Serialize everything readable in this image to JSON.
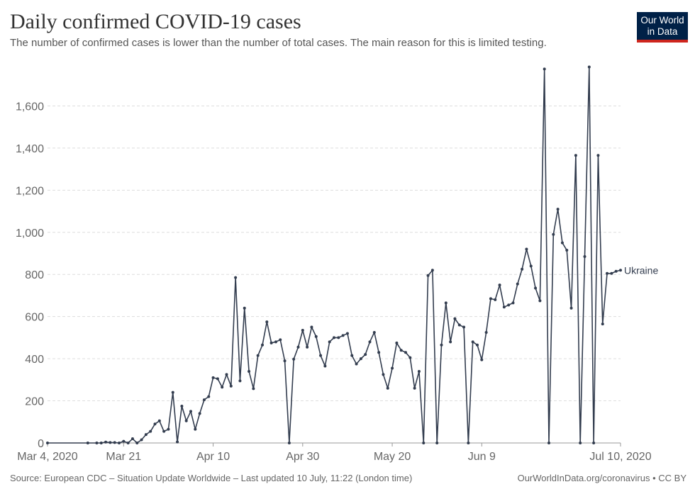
{
  "header": {
    "title": "Daily confirmed COVID-19 cases",
    "subtitle": "The number of confirmed cases is lower than the number of total cases. The main reason for this is limited testing."
  },
  "logo": {
    "line1": "Our World",
    "line2": "in Data",
    "bg_color": "#002147",
    "accent_color": "#ce261e"
  },
  "footer": {
    "source": "Source: European CDC – Situation Update Worldwide – Last updated 10 July, 11:22 (London time)",
    "credit": "OurWorldInData.org/coronavirus • CC BY"
  },
  "chart_data": {
    "type": "line",
    "x_start": "2020-03-04",
    "x_end": "2020-07-10",
    "x_tick_labels": [
      "Mar 4, 2020",
      "Mar 21",
      "Apr 10",
      "Apr 30",
      "May 20",
      "Jun 9",
      "Jul 10, 2020"
    ],
    "x_tick_dates": [
      "2020-03-04",
      "2020-03-21",
      "2020-04-10",
      "2020-04-30",
      "2020-05-20",
      "2020-06-09",
      "2020-07-10"
    ],
    "y_ticks": [
      0,
      200,
      400,
      600,
      800,
      1000,
      1200,
      1400,
      1600
    ],
    "y_tick_labels": [
      "0",
      "200",
      "400",
      "600",
      "800",
      "1,000",
      "1,200",
      "1,400",
      "1,600"
    ],
    "ylim": [
      0,
      1800
    ],
    "grid": "horizontal-dashed",
    "series": [
      {
        "name": "Ukraine",
        "color": "#333d4f",
        "points": [
          [
            "2020-03-04",
            0
          ],
          [
            "2020-03-13",
            0
          ],
          [
            "2020-03-15",
            0
          ],
          [
            "2020-03-16",
            0
          ],
          [
            "2020-03-17",
            4
          ],
          [
            "2020-03-18",
            2
          ],
          [
            "2020-03-19",
            2
          ],
          [
            "2020-03-20",
            0
          ],
          [
            "2020-03-21",
            8
          ],
          [
            "2020-03-22",
            0
          ],
          [
            "2020-03-23",
            20
          ],
          [
            "2020-03-24",
            0
          ],
          [
            "2020-03-25",
            15
          ],
          [
            "2020-03-26",
            40
          ],
          [
            "2020-03-27",
            55
          ],
          [
            "2020-03-28",
            90
          ],
          [
            "2020-03-29",
            105
          ],
          [
            "2020-03-30",
            55
          ],
          [
            "2020-03-31",
            65
          ],
          [
            "2020-04-01",
            240
          ],
          [
            "2020-04-02",
            5
          ],
          [
            "2020-04-03",
            175
          ],
          [
            "2020-04-04",
            105
          ],
          [
            "2020-04-05",
            150
          ],
          [
            "2020-04-06",
            65
          ],
          [
            "2020-04-07",
            140
          ],
          [
            "2020-04-08",
            205
          ],
          [
            "2020-04-09",
            220
          ],
          [
            "2020-04-10",
            310
          ],
          [
            "2020-04-11",
            305
          ],
          [
            "2020-04-12",
            265
          ],
          [
            "2020-04-13",
            325
          ],
          [
            "2020-04-14",
            270
          ],
          [
            "2020-04-15",
            785
          ],
          [
            "2020-04-16",
            295
          ],
          [
            "2020-04-17",
            640
          ],
          [
            "2020-04-18",
            340
          ],
          [
            "2020-04-19",
            258
          ],
          [
            "2020-04-20",
            415
          ],
          [
            "2020-04-21",
            465
          ],
          [
            "2020-04-22",
            575
          ],
          [
            "2020-04-23",
            475
          ],
          [
            "2020-04-24",
            480
          ],
          [
            "2020-04-25",
            490
          ],
          [
            "2020-04-26",
            390
          ],
          [
            "2020-04-27",
            0
          ],
          [
            "2020-04-28",
            398
          ],
          [
            "2020-04-29",
            455
          ],
          [
            "2020-04-30",
            535
          ],
          [
            "2020-05-01",
            455
          ],
          [
            "2020-05-02",
            550
          ],
          [
            "2020-05-03",
            505
          ],
          [
            "2020-05-04",
            415
          ],
          [
            "2020-05-05",
            365
          ],
          [
            "2020-05-06",
            480
          ],
          [
            "2020-05-07",
            500
          ],
          [
            "2020-05-08",
            500
          ],
          [
            "2020-05-09",
            510
          ],
          [
            "2020-05-10",
            520
          ],
          [
            "2020-05-11",
            415
          ],
          [
            "2020-05-12",
            375
          ],
          [
            "2020-05-13",
            400
          ],
          [
            "2020-05-14",
            420
          ],
          [
            "2020-05-15",
            480
          ],
          [
            "2020-05-16",
            525
          ],
          [
            "2020-05-17",
            430
          ],
          [
            "2020-05-18",
            325
          ],
          [
            "2020-05-19",
            260
          ],
          [
            "2020-05-20",
            355
          ],
          [
            "2020-05-21",
            475
          ],
          [
            "2020-05-22",
            440
          ],
          [
            "2020-05-23",
            430
          ],
          [
            "2020-05-24",
            405
          ],
          [
            "2020-05-25",
            260
          ],
          [
            "2020-05-26",
            340
          ],
          [
            "2020-05-27",
            0
          ],
          [
            "2020-05-28",
            795
          ],
          [
            "2020-05-29",
            820
          ],
          [
            "2020-05-30",
            0
          ],
          [
            "2020-05-31",
            465
          ],
          [
            "2020-06-01",
            665
          ],
          [
            "2020-06-02",
            480
          ],
          [
            "2020-06-03",
            590
          ],
          [
            "2020-06-04",
            560
          ],
          [
            "2020-06-05",
            550
          ],
          [
            "2020-06-06",
            0
          ],
          [
            "2020-06-07",
            480
          ],
          [
            "2020-06-08",
            465
          ],
          [
            "2020-06-09",
            395
          ],
          [
            "2020-06-10",
            525
          ],
          [
            "2020-06-11",
            685
          ],
          [
            "2020-06-12",
            680
          ],
          [
            "2020-06-13",
            750
          ],
          [
            "2020-06-14",
            645
          ],
          [
            "2020-06-15",
            655
          ],
          [
            "2020-06-16",
            665
          ],
          [
            "2020-06-17",
            755
          ],
          [
            "2020-06-18",
            825
          ],
          [
            "2020-06-19",
            920
          ],
          [
            "2020-06-20",
            840
          ],
          [
            "2020-06-21",
            735
          ],
          [
            "2020-06-22",
            675
          ],
          [
            "2020-06-23",
            1775
          ],
          [
            "2020-06-24",
            0
          ],
          [
            "2020-06-25",
            990
          ],
          [
            "2020-06-26",
            1110
          ],
          [
            "2020-06-27",
            950
          ],
          [
            "2020-06-28",
            915
          ],
          [
            "2020-06-29",
            640
          ],
          [
            "2020-06-30",
            1365
          ],
          [
            "2020-07-01",
            0
          ],
          [
            "2020-07-02",
            885
          ],
          [
            "2020-07-03",
            1785
          ],
          [
            "2020-07-04",
            0
          ],
          [
            "2020-07-05",
            1365
          ],
          [
            "2020-07-06",
            565
          ],
          [
            "2020-07-07",
            805
          ],
          [
            "2020-07-08",
            805
          ],
          [
            "2020-07-09",
            815
          ],
          [
            "2020-07-10",
            820
          ]
        ]
      }
    ]
  }
}
